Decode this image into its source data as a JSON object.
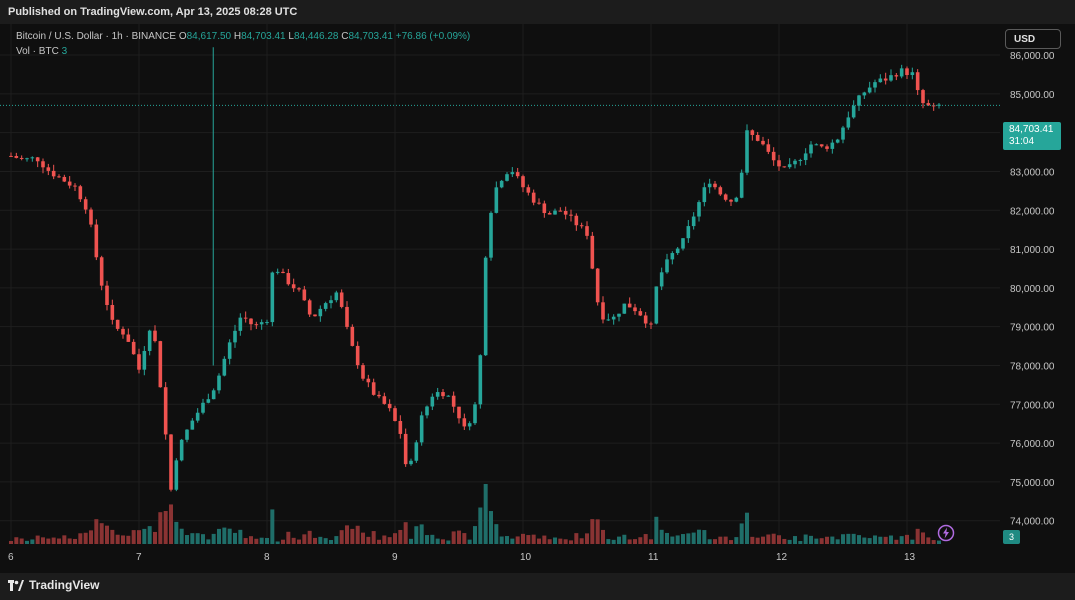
{
  "header": {
    "published": "Published on TradingView.com, Apr 13, 2025 08:28 UTC"
  },
  "legend": {
    "symbol": "Bitcoin / U.S. Dollar · 1h · BINANCE",
    "o_label": "O",
    "o_value": "84,617.50",
    "h_label": "H",
    "h_value": "84,703.41",
    "l_label": "L",
    "l_value": "84,446.28",
    "c_label": "C",
    "c_value": "84,703.41",
    "change": "+76.86 (+0.09%)",
    "vol_label": "Vol · BTC",
    "vol_value": "3"
  },
  "currency_button": "USD",
  "last_price": {
    "price": "84,703.41",
    "countdown": "31:04"
  },
  "volume_tag": "3",
  "footer": {
    "brand": "TradingView"
  },
  "colors": {
    "up": "#26a69a",
    "down": "#ef5350",
    "volume_up": "#1f6e69",
    "volume_down": "#8a3333",
    "background": "#0f0f0f"
  },
  "chart_data": {
    "type": "candlestick",
    "title": "",
    "interval": "1h",
    "x_ticks": [
      "6",
      "7",
      "8",
      "9",
      "10",
      "11",
      "12",
      "13"
    ],
    "y_ticks": [
      "86,000.00",
      "85,000.00",
      "84,000.00",
      "83,000.00",
      "82,000.00",
      "81,000.00",
      "80,000.00",
      "79,000.00",
      "78,000.00",
      "77,000.00",
      "76,000.00",
      "75,000.00",
      "74,000.00"
    ],
    "ylim": [
      73400,
      86800
    ],
    "grid": true,
    "close_path": [
      [
        6.0,
        83400
      ],
      [
        6.1,
        83300
      ],
      [
        6.2,
        83350
      ],
      [
        6.3,
        83000
      ],
      [
        6.4,
        82800
      ],
      [
        6.5,
        82600
      ],
      [
        6.6,
        82000
      ],
      [
        6.7,
        80200
      ],
      [
        6.8,
        79000
      ],
      [
        6.9,
        78800
      ],
      [
        7.0,
        77900
      ],
      [
        7.1,
        79200
      ],
      [
        7.15,
        78000
      ],
      [
        7.2,
        76500
      ],
      [
        7.25,
        74800
      ],
      [
        7.3,
        75800
      ],
      [
        7.4,
        76500
      ],
      [
        7.5,
        77000
      ],
      [
        7.6,
        77500
      ],
      [
        7.7,
        78500
      ],
      [
        7.8,
        79300
      ],
      [
        7.9,
        79000
      ],
      [
        8.0,
        79200
      ],
      [
        8.05,
        80600
      ],
      [
        8.15,
        80200
      ],
      [
        8.25,
        79900
      ],
      [
        8.35,
        79200
      ],
      [
        8.45,
        79600
      ],
      [
        8.55,
        79900
      ],
      [
        8.65,
        78600
      ],
      [
        8.75,
        77700
      ],
      [
        8.85,
        77200
      ],
      [
        8.95,
        76900
      ],
      [
        9.05,
        76200
      ],
      [
        9.1,
        75100
      ],
      [
        9.2,
        76600
      ],
      [
        9.3,
        77300
      ],
      [
        9.4,
        77300
      ],
      [
        9.5,
        76700
      ],
      [
        9.55,
        76300
      ],
      [
        9.65,
        77200
      ],
      [
        9.72,
        81600
      ],
      [
        9.8,
        82700
      ],
      [
        9.9,
        83100
      ],
      [
        10.0,
        82600
      ],
      [
        10.1,
        82200
      ],
      [
        10.2,
        81900
      ],
      [
        10.3,
        82000
      ],
      [
        10.4,
        81700
      ],
      [
        10.5,
        81400
      ],
      [
        10.6,
        79300
      ],
      [
        10.7,
        79200
      ],
      [
        10.8,
        79600
      ],
      [
        10.9,
        79400
      ],
      [
        11.0,
        79000
      ],
      [
        11.05,
        80200
      ],
      [
        11.15,
        80800
      ],
      [
        11.25,
        81200
      ],
      [
        11.35,
        82000
      ],
      [
        11.45,
        82800
      ],
      [
        11.55,
        82400
      ],
      [
        11.65,
        82200
      ],
      [
        11.7,
        82800
      ],
      [
        11.75,
        84000
      ],
      [
        11.85,
        83800
      ],
      [
        11.95,
        83300
      ],
      [
        12.05,
        83000
      ],
      [
        12.15,
        83300
      ],
      [
        12.25,
        83700
      ],
      [
        12.35,
        83600
      ],
      [
        12.45,
        83800
      ],
      [
        12.55,
        84500
      ],
      [
        12.65,
        85000
      ],
      [
        12.75,
        85300
      ],
      [
        12.85,
        85400
      ],
      [
        12.95,
        85600
      ],
      [
        13.05,
        85500
      ],
      [
        13.1,
        84800
      ],
      [
        13.2,
        84600
      ],
      [
        13.25,
        84700
      ]
    ],
    "spike": {
      "x": 7.58,
      "high": 86200,
      "low": 78000
    },
    "volume": {
      "ylim": [
        0,
        18
      ],
      "last": 3
    }
  }
}
